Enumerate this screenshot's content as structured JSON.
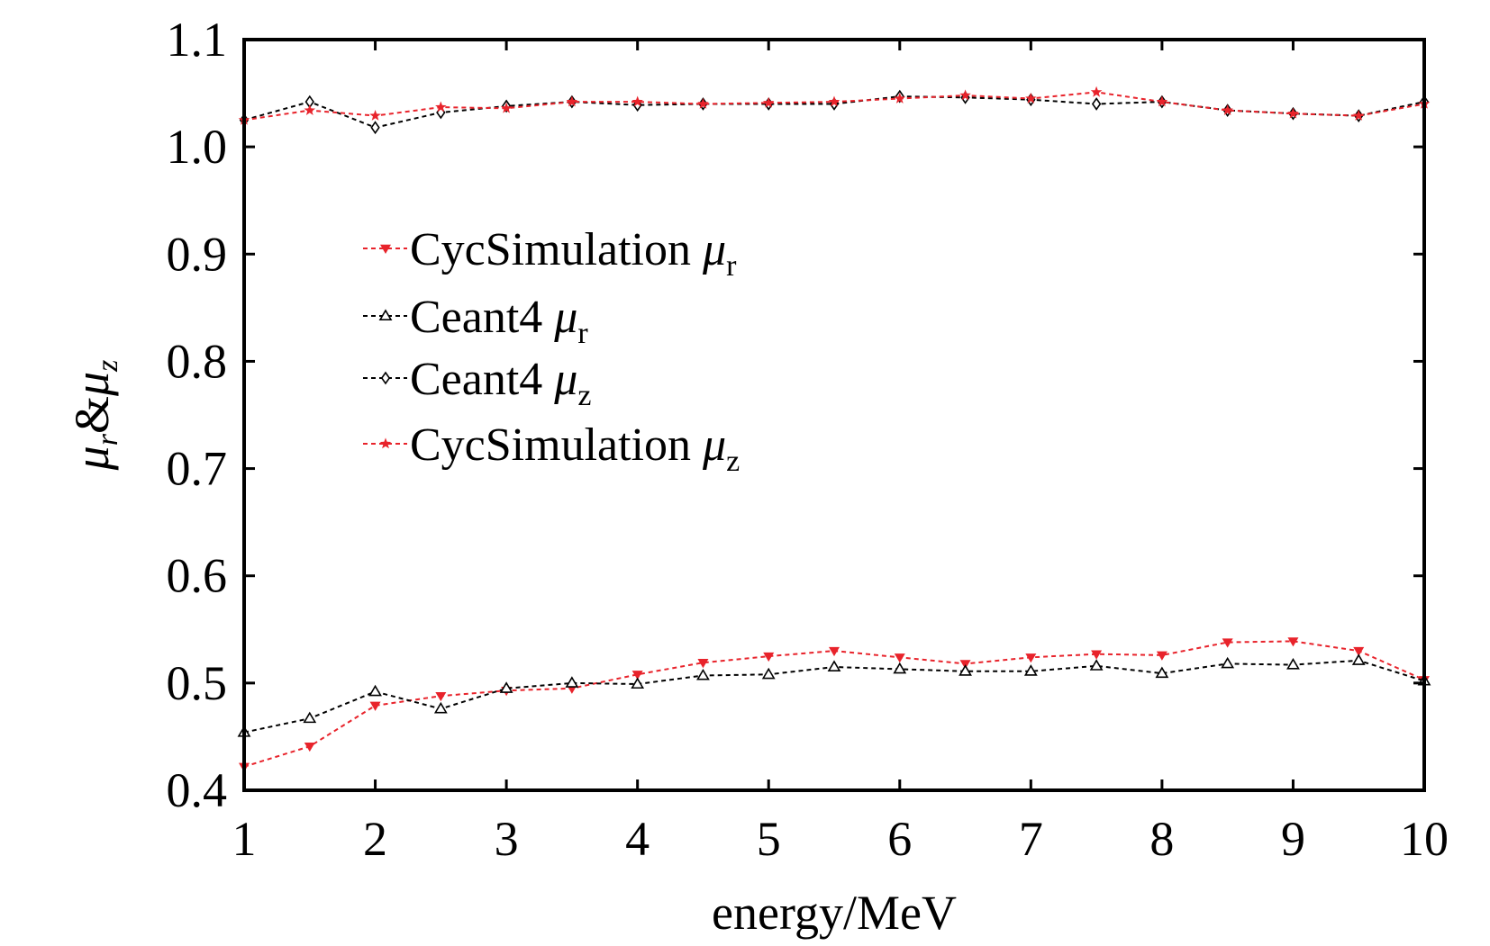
{
  "colors": {
    "red": "#e8232b",
    "black": "#000000",
    "frame": "#000000",
    "background": "#ffffff"
  },
  "chart_data": {
    "type": "line",
    "title": "",
    "xlabel": "energy/MeV",
    "ylabel": {
      "mu1": "μ",
      "sub1": "r",
      "amp": "&",
      "mu2": "μ",
      "sub2": "z"
    },
    "xlim": [
      1,
      10
    ],
    "ylim": [
      0.4,
      1.1
    ],
    "x_ticks": [
      "1",
      "2",
      "3",
      "4",
      "5",
      "6",
      "7",
      "8",
      "9",
      "10"
    ],
    "y_ticks": [
      "0.4",
      "0.5",
      "0.6",
      "0.7",
      "0.8",
      "0.9",
      "1.0",
      "1.1"
    ],
    "grid": false,
    "legend_placement": "center-left",
    "x": [
      1,
      1.5,
      2,
      2.5,
      3,
      3.5,
      4,
      4.5,
      5,
      5.5,
      6,
      6.5,
      7,
      7.5,
      8,
      8.5,
      9,
      9.5,
      10
    ],
    "series": [
      {
        "name": "CycSimulation",
        "symbol": "μ",
        "sub": "r",
        "color": "red",
        "marker": "triangle-down",
        "values": [
          0.422,
          0.441,
          0.479,
          0.488,
          0.493,
          0.495,
          0.508,
          0.519,
          0.525,
          0.53,
          0.524,
          0.518,
          0.524,
          0.527,
          0.526,
          0.538,
          0.539,
          0.53,
          0.503
        ]
      },
      {
        "name": "Ceant4",
        "symbol": "μ",
        "sub": "r",
        "color": "black",
        "marker": "triangle-up",
        "values": [
          0.454,
          0.467,
          0.492,
          0.476,
          0.495,
          0.5,
          0.499,
          0.507,
          0.508,
          0.515,
          0.513,
          0.511,
          0.511,
          0.516,
          0.509,
          0.518,
          0.517,
          0.521,
          0.502
        ]
      },
      {
        "name": "Ceant4",
        "symbol": "μ",
        "sub": "z",
        "color": "black",
        "marker": "diamond",
        "values": [
          1.025,
          1.042,
          1.018,
          1.032,
          1.038,
          1.042,
          1.039,
          1.04,
          1.04,
          1.04,
          1.047,
          1.046,
          1.044,
          1.04,
          1.042,
          1.034,
          1.031,
          1.029,
          1.042
        ]
      },
      {
        "name": "CycSimulation",
        "symbol": "μ",
        "sub": "z",
        "color": "red",
        "marker": "star",
        "values": [
          1.025,
          1.034,
          1.029,
          1.037,
          1.036,
          1.042,
          1.042,
          1.04,
          1.041,
          1.042,
          1.045,
          1.048,
          1.045,
          1.051,
          1.042,
          1.034,
          1.031,
          1.029,
          1.04
        ]
      }
    ]
  }
}
